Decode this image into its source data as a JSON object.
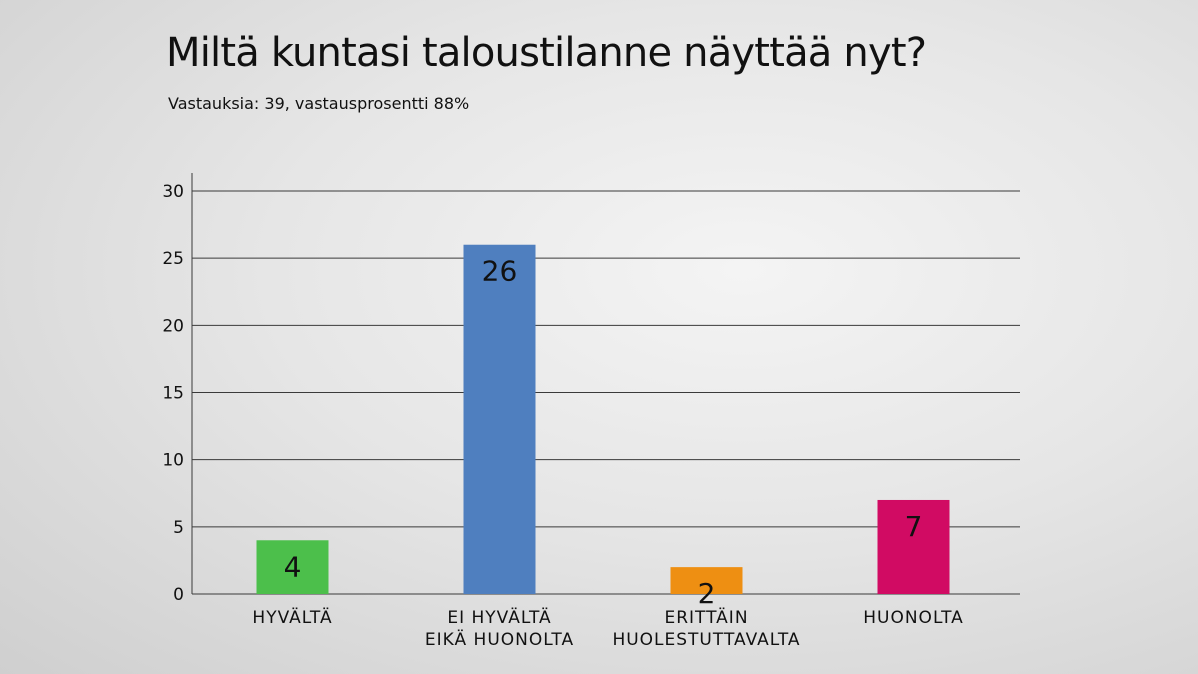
{
  "header": {
    "title": "Miltä kuntasi taloustilanne näyttää nyt?",
    "subtitle": "Vastauksia: 39, vastausprosentti 88%"
  },
  "chart_data": {
    "type": "bar",
    "title": "Miltä kuntasi taloustilanne näyttää nyt?",
    "subtitle": "Vastauksia: 39, vastausprosentti 88%",
    "xlabel": "",
    "ylabel": "",
    "ylim": [
      0,
      30
    ],
    "yticks": [
      0,
      5,
      10,
      15,
      20,
      25,
      30
    ],
    "grid": true,
    "legend": "none",
    "categories": [
      [
        "HYVÄLTÄ"
      ],
      [
        "EI HYVÄLTÄ",
        "EIKÄ HUONOLTA"
      ],
      [
        "ERITTÄIN",
        "HUOLESTUTTAVALTA"
      ],
      [
        "HUONOLTA"
      ]
    ],
    "values": [
      4,
      26,
      2,
      7
    ],
    "colors": [
      "#4cbf4b",
      "#4f7fbf",
      "#ee8f12",
      "#d10b63"
    ]
  }
}
